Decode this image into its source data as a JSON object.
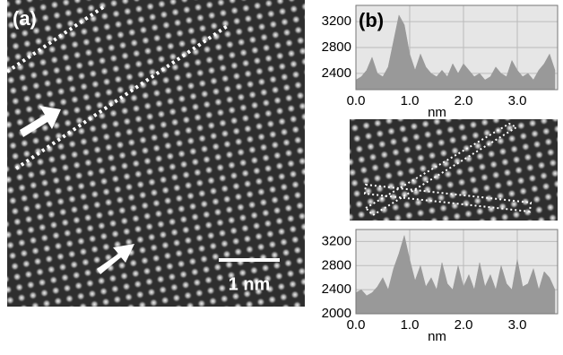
{
  "panels": {
    "a": {
      "label": "(a)",
      "scale_bar": "1 nm"
    },
    "b": {
      "label": "(b)"
    }
  },
  "chart_data": [
    {
      "type": "area",
      "xlabel": "nm",
      "color": "#999999",
      "grid": true,
      "x": [
        0,
        0.1,
        0.2,
        0.3,
        0.4,
        0.5,
        0.6,
        0.7,
        0.8,
        0.9,
        1.0,
        1.1,
        1.2,
        1.3,
        1.4,
        1.5,
        1.6,
        1.7,
        1.8,
        1.9,
        2.0,
        2.1,
        2.2,
        2.3,
        2.4,
        2.5,
        2.6,
        2.7,
        2.8,
        2.9,
        3.0,
        3.1,
        3.2,
        3.3,
        3.4,
        3.5,
        3.6,
        3.7
      ],
      "values": [
        2300,
        2350,
        2450,
        2650,
        2400,
        2350,
        2500,
        2900,
        3300,
        3150,
        2700,
        2450,
        2700,
        2500,
        2400,
        2350,
        2450,
        2350,
        2550,
        2400,
        2550,
        2450,
        2350,
        2400,
        2300,
        2350,
        2500,
        2400,
        2350,
        2600,
        2450,
        2350,
        2400,
        2300,
        2450,
        2550,
        2700,
        2450
      ],
      "xlim": [
        0,
        3.75
      ],
      "ylim": [
        2150,
        3450
      ],
      "xticks": [
        {
          "value": 0,
          "label": "0.0"
        },
        {
          "value": 1,
          "label": "1.0"
        },
        {
          "value": 2,
          "label": "2.0"
        },
        {
          "value": 3,
          "label": "3.0"
        }
      ],
      "yticks": [
        2400,
        2800,
        3200
      ]
    },
    {
      "type": "area",
      "xlabel": "nm",
      "color": "#999999",
      "grid": true,
      "x": [
        0,
        0.1,
        0.2,
        0.3,
        0.4,
        0.5,
        0.6,
        0.7,
        0.8,
        0.9,
        1.0,
        1.1,
        1.2,
        1.3,
        1.4,
        1.5,
        1.6,
        1.7,
        1.8,
        1.9,
        2.0,
        2.1,
        2.2,
        2.3,
        2.4,
        2.5,
        2.6,
        2.7,
        2.8,
        2.9,
        3.0,
        3.1,
        3.2,
        3.3,
        3.4,
        3.5,
        3.6,
        3.7
      ],
      "values": [
        2350,
        2400,
        2300,
        2350,
        2450,
        2600,
        2400,
        2750,
        3000,
        3300,
        2900,
        2550,
        2800,
        2450,
        2600,
        2400,
        2850,
        2500,
        2400,
        2800,
        2450,
        2650,
        2400,
        2850,
        2450,
        2650,
        2400,
        2800,
        2500,
        2400,
        2900,
        2450,
        2500,
        2750,
        2400,
        2700,
        2600,
        2400
      ],
      "xlim": [
        0,
        3.75
      ],
      "ylim": [
        2000,
        3400
      ],
      "xticks": [
        {
          "value": 0,
          "label": "0.0"
        },
        {
          "value": 1,
          "label": "1.0"
        },
        {
          "value": 2,
          "label": "2.0"
        },
        {
          "value": 3,
          "label": "3.0"
        }
      ],
      "yticks": [
        2000,
        2400,
        2800,
        3200
      ]
    }
  ]
}
